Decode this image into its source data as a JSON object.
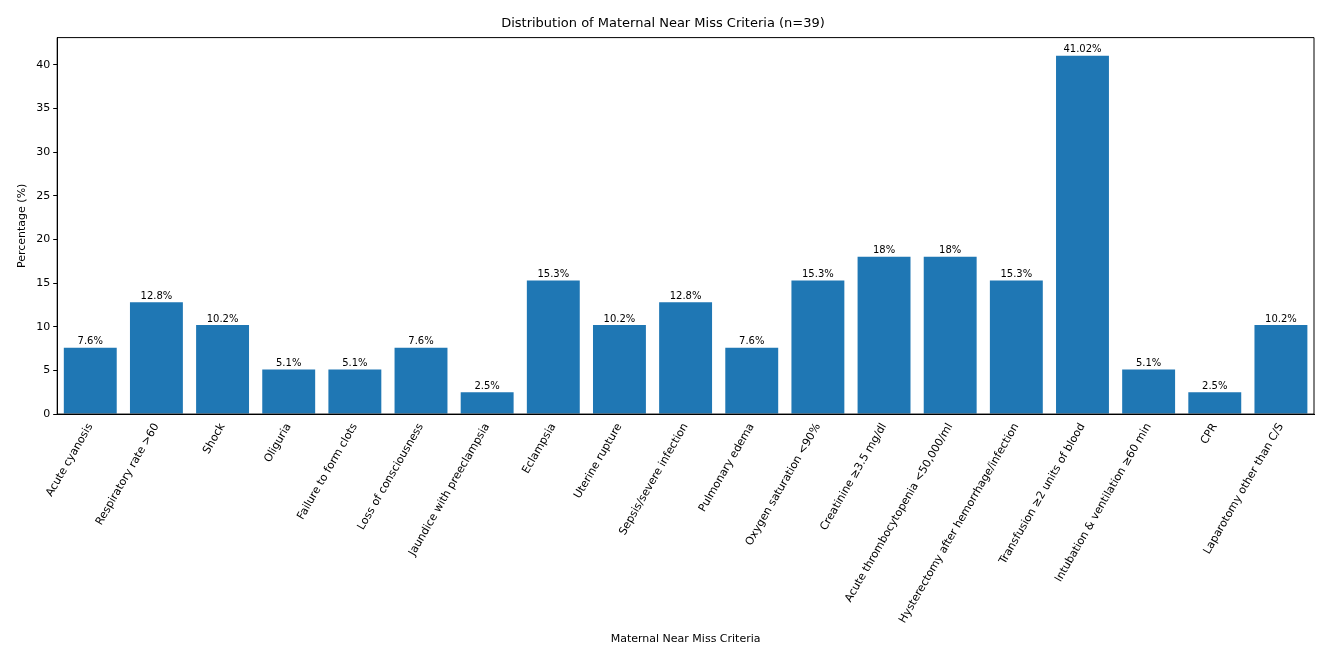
{
  "chart_data": {
    "type": "bar",
    "title": "Distribution of Maternal Near Miss Criteria (n=39)",
    "xlabel": "Maternal Near Miss Criteria",
    "ylabel": "Percentage (%)",
    "categories": [
      "Acute cyanosis",
      "Respiratory rate >60",
      "Shock",
      "Oliguria",
      "Failure to form clots",
      "Loss of consciousness",
      "Jaundice with preeclampsia",
      "Eclampsia",
      "Uterine rupture",
      "Sepsis/severe infection",
      "Pulmonary edema",
      "Oxygen saturation <90%",
      "Creatinine ≥3.5 mg/dl",
      "Acute thrombocytopenia <50,000/ml",
      "Hysterectomy after hemorrhage/infection",
      "Transfusion ≥2 units of blood",
      "Intubation & ventilation ≥60 min",
      "CPR",
      "Laparotomy other than C/S"
    ],
    "values": [
      7.6,
      12.8,
      10.2,
      5.1,
      5.1,
      7.6,
      2.5,
      15.3,
      10.2,
      12.8,
      7.6,
      15.3,
      18,
      18,
      15.3,
      41.02,
      5.1,
      2.5,
      10.2
    ],
    "color": "#1f77b4",
    "ylim": [
      0,
      43.1
    ],
    "yticks": [
      0,
      5,
      10,
      15,
      20,
      25,
      30,
      35,
      40
    ],
    "grid": false,
    "legend": false,
    "value_labels": [
      "7.6%",
      "12.8%",
      "10.2%",
      "5.1%",
      "5.1%",
      "7.6%",
      "2.5%",
      "15.3%",
      "10.2%",
      "12.8%",
      "7.6%",
      "15.3%",
      "18%",
      "18%",
      "15.3%",
      "41.02%",
      "5.1%",
      "2.5%",
      "10.2%"
    ]
  }
}
